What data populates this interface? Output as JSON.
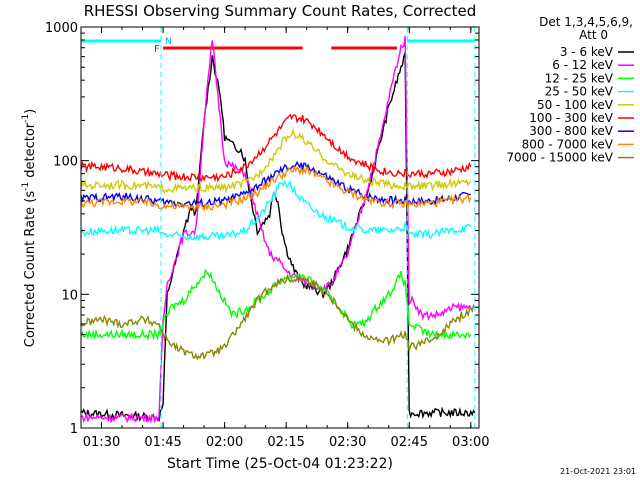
{
  "chart_data": {
    "type": "line",
    "title": "RHESSI Observing Summary Count Rates, Corrected",
    "xlabel": "Start Time (25-Oct-04 01:23:22)",
    "ylabel_main": "Corrected Count Rate (s",
    "ylabel_sup1": "-1",
    "ylabel_mid": " detector",
    "ylabel_sup2": "-1",
    "ylabel_end": ")",
    "y_scale": "log",
    "ylim": [
      1,
      1000
    ],
    "xlim_minutes": [
      85,
      182
    ],
    "x_ticks": [
      {
        "label": "01:30",
        "minutes": 90
      },
      {
        "label": "01:45",
        "minutes": 105
      },
      {
        "label": "02:00",
        "minutes": 120
      },
      {
        "label": "02:15",
        "minutes": 135
      },
      {
        "label": "02:30",
        "minutes": 150
      },
      {
        "label": "02:45",
        "minutes": 165
      },
      {
        "label": "03:00",
        "minutes": 180
      }
    ],
    "y_ticks": [
      {
        "label": "1",
        "value": 1
      },
      {
        "label": "10",
        "value": 10
      },
      {
        "label": "100",
        "value": 100
      },
      {
        "label": "1000",
        "value": 1000
      }
    ],
    "legend_header": [
      "Det 1,3,4,5,6,9,",
      "Att 0"
    ],
    "legend_placement": "right",
    "flag_labels": {
      "flare": "F",
      "night": "N"
    },
    "footer_date": "21-Oct-2021 23:01",
    "series": [
      {
        "name": "3 - 6 keV",
        "color": "#000000",
        "points": [
          [
            85,
            1.3
          ],
          [
            104,
            1.2
          ],
          [
            105,
            1.5
          ],
          [
            106,
            10
          ],
          [
            108,
            17
          ],
          [
            110,
            30
          ],
          [
            112,
            45
          ],
          [
            113,
            40
          ],
          [
            115,
            200
          ],
          [
            117,
            600
          ],
          [
            118,
            420
          ],
          [
            119,
            300
          ],
          [
            120,
            150
          ],
          [
            122,
            130
          ],
          [
            124,
            120
          ],
          [
            125,
            100
          ],
          [
            126,
            60
          ],
          [
            128,
            30
          ],
          [
            131,
            40
          ],
          [
            132,
            60
          ],
          [
            133,
            50
          ],
          [
            134,
            30
          ],
          [
            135,
            22
          ],
          [
            137,
            15
          ],
          [
            139,
            12
          ],
          [
            142,
            11
          ],
          [
            144,
            10
          ],
          [
            146,
            12
          ],
          [
            150,
            22
          ],
          [
            155,
            60
          ],
          [
            160,
            250
          ],
          [
            163,
            500
          ],
          [
            164,
            600
          ],
          [
            165,
            1.3
          ],
          [
            175,
            1.3
          ],
          [
            181,
            1.3
          ]
        ]
      },
      {
        "name": "6 - 12 keV",
        "color": "#ff00ff",
        "points": [
          [
            85,
            1.2
          ],
          [
            104,
            1.2
          ],
          [
            105,
            6
          ],
          [
            106,
            12
          ],
          [
            108,
            18
          ],
          [
            110,
            28
          ],
          [
            113,
            30
          ],
          [
            115,
            200
          ],
          [
            117,
            800
          ],
          [
            118,
            400
          ],
          [
            119,
            200
          ],
          [
            120,
            100
          ],
          [
            122,
            90
          ],
          [
            125,
            80
          ],
          [
            127,
            50
          ],
          [
            129,
            30
          ],
          [
            131,
            20
          ],
          [
            133,
            18
          ],
          [
            135,
            15
          ],
          [
            138,
            13
          ],
          [
            141,
            12
          ],
          [
            144,
            11
          ],
          [
            146,
            12
          ],
          [
            150,
            20
          ],
          [
            154,
            50
          ],
          [
            158,
            150
          ],
          [
            161,
            400
          ],
          [
            163,
            700
          ],
          [
            164,
            800
          ],
          [
            165,
            9
          ],
          [
            166,
            9
          ],
          [
            168,
            7
          ],
          [
            172,
            7
          ],
          [
            176,
            8
          ],
          [
            179,
            8
          ],
          [
            180,
            8
          ]
        ]
      },
      {
        "name": "12 - 25 keV",
        "color": "#00ff00",
        "points": [
          [
            85,
            5
          ],
          [
            90,
            5
          ],
          [
            95,
            5
          ],
          [
            100,
            5
          ],
          [
            104,
            5
          ],
          [
            105,
            6
          ],
          [
            107,
            8
          ],
          [
            110,
            9
          ],
          [
            113,
            12
          ],
          [
            116,
            15
          ],
          [
            119,
            10
          ],
          [
            122,
            7
          ],
          [
            126,
            8
          ],
          [
            130,
            10
          ],
          [
            134,
            13
          ],
          [
            138,
            14
          ],
          [
            142,
            12
          ],
          [
            145,
            10
          ],
          [
            148,
            8
          ],
          [
            151,
            6
          ],
          [
            154,
            6
          ],
          [
            157,
            8
          ],
          [
            160,
            10
          ],
          [
            163,
            14
          ],
          [
            164,
            12
          ],
          [
            165,
            6
          ],
          [
            170,
            5
          ],
          [
            175,
            5
          ],
          [
            180,
            5
          ]
        ]
      },
      {
        "name": "25 - 50 keV",
        "color": "#00ffff",
        "points": [
          [
            85,
            29
          ],
          [
            90,
            30
          ],
          [
            95,
            30
          ],
          [
            100,
            30
          ],
          [
            104,
            30
          ],
          [
            105,
            28
          ],
          [
            110,
            27
          ],
          [
            115,
            27
          ],
          [
            120,
            27
          ],
          [
            125,
            30
          ],
          [
            129,
            40
          ],
          [
            132,
            55
          ],
          [
            134,
            70
          ],
          [
            136,
            65
          ],
          [
            139,
            50
          ],
          [
            142,
            42
          ],
          [
            146,
            36
          ],
          [
            150,
            32
          ],
          [
            155,
            30
          ],
          [
            160,
            30
          ],
          [
            164,
            32
          ],
          [
            165,
            28
          ],
          [
            170,
            28
          ],
          [
            175,
            30
          ],
          [
            180,
            32
          ]
        ]
      },
      {
        "name": "50 - 100 keV",
        "color": "#cccc00",
        "points": [
          [
            85,
            65
          ],
          [
            90,
            66
          ],
          [
            95,
            66
          ],
          [
            100,
            65
          ],
          [
            105,
            62
          ],
          [
            110,
            62
          ],
          [
            115,
            62
          ],
          [
            120,
            63
          ],
          [
            125,
            68
          ],
          [
            128,
            78
          ],
          [
            132,
            110
          ],
          [
            135,
            150
          ],
          [
            137,
            160
          ],
          [
            139,
            145
          ],
          [
            142,
            120
          ],
          [
            146,
            95
          ],
          [
            150,
            80
          ],
          [
            155,
            70
          ],
          [
            160,
            66
          ],
          [
            165,
            64
          ],
          [
            170,
            65
          ],
          [
            175,
            67
          ],
          [
            180,
            70
          ]
        ]
      },
      {
        "name": "100 - 300 keV",
        "color": "#ff0000",
        "points": [
          [
            85,
            90
          ],
          [
            90,
            90
          ],
          [
            95,
            88
          ],
          [
            100,
            82
          ],
          [
            105,
            78
          ],
          [
            110,
            76
          ],
          [
            115,
            75
          ],
          [
            120,
            76
          ],
          [
            125,
            90
          ],
          [
            128,
            110
          ],
          [
            131,
            140
          ],
          [
            134,
            180
          ],
          [
            136,
            210
          ],
          [
            139,
            205
          ],
          [
            142,
            180
          ],
          [
            145,
            150
          ],
          [
            148,
            120
          ],
          [
            152,
            100
          ],
          [
            156,
            88
          ],
          [
            160,
            82
          ],
          [
            165,
            80
          ],
          [
            170,
            80
          ],
          [
            175,
            82
          ],
          [
            180,
            90
          ]
        ]
      },
      {
        "name": "300 - 800 keV",
        "color": "#0000ff",
        "points": [
          [
            85,
            52
          ],
          [
            90,
            53
          ],
          [
            95,
            54
          ],
          [
            100,
            52
          ],
          [
            105,
            49
          ],
          [
            110,
            48
          ],
          [
            115,
            48
          ],
          [
            120,
            50
          ],
          [
            125,
            56
          ],
          [
            128,
            64
          ],
          [
            132,
            78
          ],
          [
            135,
            88
          ],
          [
            138,
            92
          ],
          [
            141,
            88
          ],
          [
            144,
            78
          ],
          [
            148,
            66
          ],
          [
            152,
            58
          ],
          [
            156,
            53
          ],
          [
            160,
            51
          ],
          [
            165,
            50
          ],
          [
            170,
            50
          ],
          [
            175,
            52
          ],
          [
            180,
            56
          ]
        ]
      },
      {
        "name": "800 - 7000 keV",
        "color": "#ff8800",
        "points": [
          [
            85,
            48
          ],
          [
            90,
            49
          ],
          [
            95,
            50
          ],
          [
            100,
            49
          ],
          [
            105,
            46
          ],
          [
            110,
            45
          ],
          [
            115,
            45
          ],
          [
            120,
            47
          ],
          [
            125,
            52
          ],
          [
            128,
            58
          ],
          [
            132,
            72
          ],
          [
            135,
            82
          ],
          [
            138,
            86
          ],
          [
            141,
            82
          ],
          [
            144,
            73
          ],
          [
            148,
            62
          ],
          [
            152,
            55
          ],
          [
            156,
            50
          ],
          [
            160,
            48
          ],
          [
            165,
            47
          ],
          [
            170,
            48
          ],
          [
            175,
            50
          ],
          [
            180,
            53
          ]
        ]
      },
      {
        "name": "7000 - 15000 keV",
        "color": "#888800",
        "points": [
          [
            85,
            6
          ],
          [
            90,
            6.5
          ],
          [
            95,
            6
          ],
          [
            100,
            6.5
          ],
          [
            104,
            6
          ],
          [
            105,
            5
          ],
          [
            108,
            4
          ],
          [
            112,
            3.5
          ],
          [
            116,
            3.5
          ],
          [
            120,
            4
          ],
          [
            124,
            6
          ],
          [
            128,
            9
          ],
          [
            132,
            12
          ],
          [
            136,
            13
          ],
          [
            139,
            13
          ],
          [
            142,
            12
          ],
          [
            145,
            10
          ],
          [
            148,
            8
          ],
          [
            151,
            6
          ],
          [
            154,
            5
          ],
          [
            157,
            4.5
          ],
          [
            160,
            4.5
          ],
          [
            164,
            5
          ],
          [
            165,
            4
          ],
          [
            170,
            4.5
          ],
          [
            175,
            6
          ],
          [
            178,
            7
          ],
          [
            181,
            8
          ]
        ]
      }
    ],
    "flag_bars": [
      {
        "type": "night",
        "color": "#00ffff",
        "from": 85,
        "to": 104.5
      },
      {
        "type": "night",
        "color": "#00ffff",
        "from": 164.5,
        "to": 181
      },
      {
        "type": "flare",
        "color": "#ff0000",
        "from": 105,
        "to": 139
      },
      {
        "type": "flare",
        "color": "#ff0000",
        "from": 146,
        "to": 162
      }
    ],
    "dashed_markers": [
      104.5,
      164.5,
      181
    ]
  }
}
